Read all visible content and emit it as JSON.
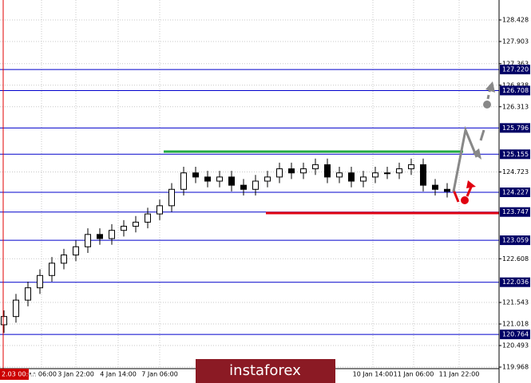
{
  "chart_data": {
    "type": "candlestick",
    "open": [
      121.0,
      121.2,
      121.6,
      121.9,
      122.2,
      122.5,
      122.7,
      122.9,
      123.2,
      123.1,
      123.3,
      123.4,
      123.5,
      123.7,
      123.9,
      124.3,
      124.7,
      124.6,
      124.5,
      124.6,
      124.4,
      124.3,
      124.5,
      124.6,
      124.8,
      124.7,
      124.8,
      124.9,
      124.6,
      124.7,
      124.5,
      124.6,
      124.7,
      124.7,
      124.8,
      124.9,
      124.4,
      124.3
    ],
    "high": [
      121.35,
      121.75,
      122.05,
      122.35,
      122.65,
      122.85,
      123.05,
      123.35,
      123.35,
      123.45,
      123.55,
      123.65,
      123.85,
      124.05,
      124.45,
      124.85,
      124.85,
      124.75,
      124.75,
      124.75,
      124.55,
      124.65,
      124.75,
      124.95,
      124.95,
      124.95,
      125.05,
      125.05,
      124.85,
      124.85,
      124.75,
      124.85,
      124.85,
      124.95,
      125.05,
      125.05,
      124.55,
      124.45
    ],
    "low": [
      120.8,
      121.05,
      121.45,
      121.75,
      122.05,
      122.35,
      122.55,
      122.75,
      122.95,
      122.95,
      123.15,
      123.25,
      123.35,
      123.55,
      123.75,
      124.15,
      124.45,
      124.35,
      124.35,
      124.25,
      124.15,
      124.15,
      124.35,
      124.45,
      124.55,
      124.55,
      124.65,
      124.45,
      124.45,
      124.35,
      124.35,
      124.45,
      124.55,
      124.55,
      124.65,
      124.25,
      124.15,
      124.1
    ],
    "close": [
      121.2,
      121.6,
      121.9,
      122.2,
      122.5,
      122.7,
      122.9,
      123.2,
      123.1,
      123.3,
      123.4,
      123.5,
      123.7,
      123.9,
      124.3,
      124.7,
      124.6,
      124.5,
      124.6,
      124.4,
      124.3,
      124.5,
      124.6,
      124.8,
      124.7,
      124.8,
      124.9,
      124.6,
      124.7,
      124.5,
      124.6,
      124.7,
      124.7,
      124.8,
      124.9,
      124.4,
      124.3,
      124.25
    ],
    "x_labels": [
      "Jan 06:00",
      "3 Jan 22:00",
      "4 Jan 14:00",
      "7 Jan 06:00",
      "10 Jan 14:00",
      "11 Jan 06:00",
      "11 Jan 22:00"
    ],
    "ylim": [
      119.93,
      128.914
    ],
    "yticks": [
      128.428,
      127.903,
      127.363,
      126.838,
      126.313,
      124.723,
      122.608,
      121.543,
      121.018,
      120.493,
      119.968
    ],
    "levels": [
      {
        "value": 127.22,
        "label": "127.220"
      },
      {
        "value": 126.708,
        "label": "126.708"
      },
      {
        "value": 125.796,
        "label": "125.796"
      },
      {
        "value": 125.155,
        "label": "125.155"
      },
      {
        "value": 124.227,
        "label": "124.227"
      },
      {
        "value": 123.747,
        "label": "123.747"
      },
      {
        "value": 123.059,
        "label": "123.059"
      },
      {
        "value": 122.036,
        "label": "122.036"
      },
      {
        "value": 120.764,
        "label": "120.764"
      }
    ],
    "grid": true
  },
  "time_marker": "2.03 00:00",
  "watermark": "instaforex"
}
